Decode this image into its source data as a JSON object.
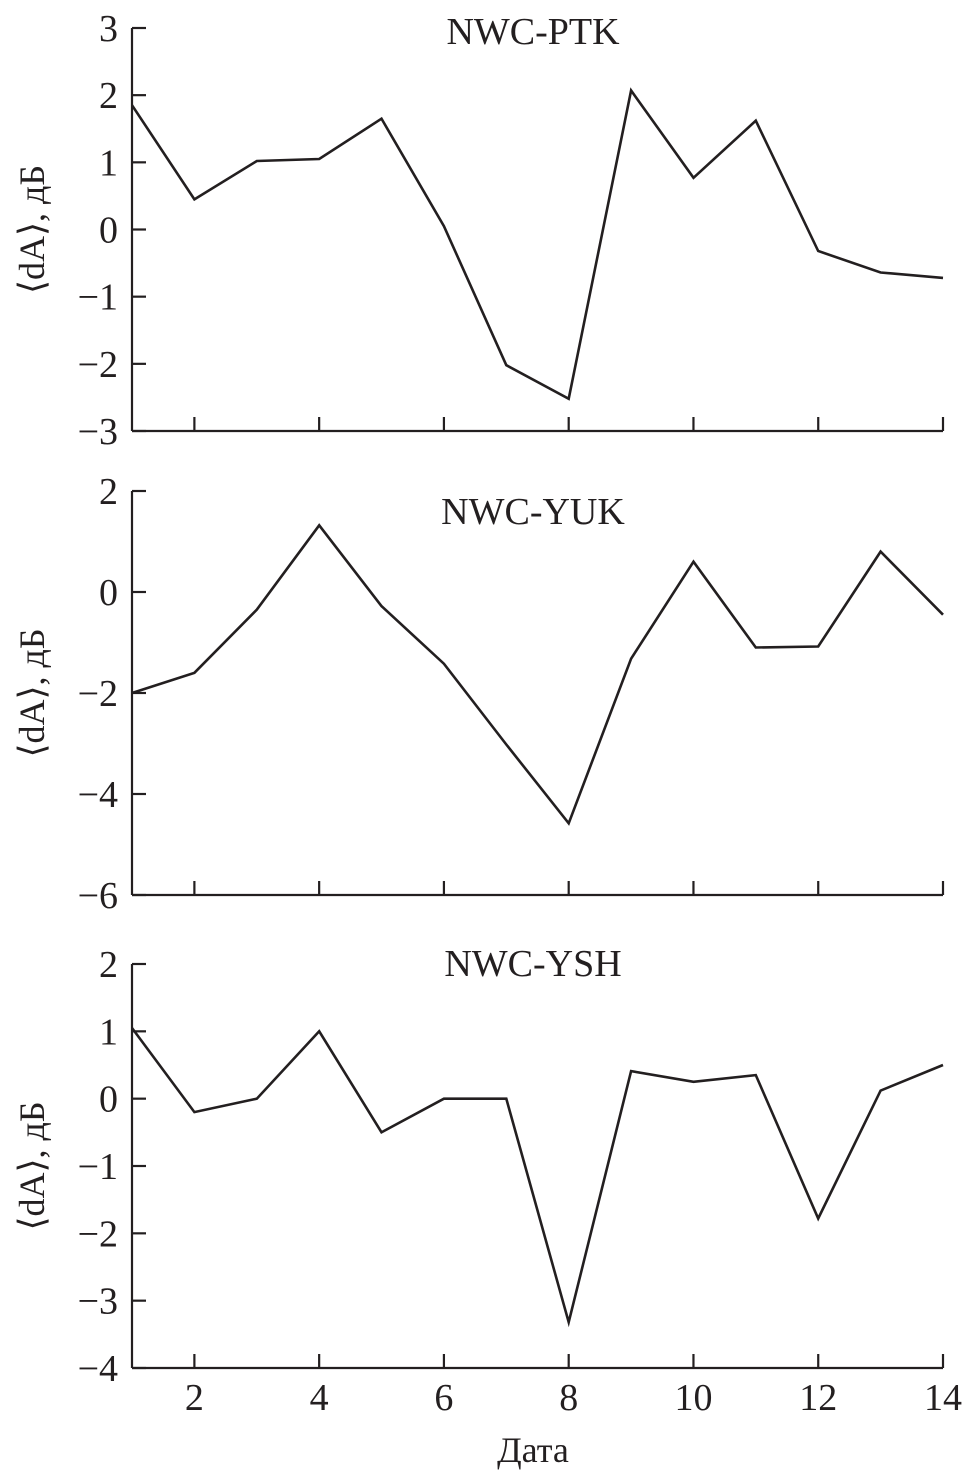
{
  "figure": {
    "xlabel": "Дата"
  },
  "chart_data": [
    {
      "type": "line",
      "title": "NWC-PTK",
      "ylabel": "⟨dA⟩, дБ",
      "xlim": [
        1,
        14
      ],
      "ylim": [
        -3,
        3
      ],
      "yticks": [
        3,
        2,
        1,
        0,
        -1,
        -2,
        -3
      ],
      "ytick_labels": [
        "3",
        "2",
        "1",
        "0",
        "−1",
        "−2",
        "−3"
      ],
      "xticks": [
        2,
        4,
        6,
        8,
        10,
        12,
        14
      ],
      "xtick_labels": [],
      "x": [
        1,
        2,
        3,
        4,
        5,
        6,
        7,
        8,
        9,
        10,
        11,
        12,
        13,
        14
      ],
      "values": [
        1.85,
        0.45,
        1.02,
        1.05,
        1.65,
        0.05,
        -2.02,
        -2.52,
        2.07,
        0.77,
        1.62,
        -0.32,
        -0.64,
        -0.72
      ]
    },
    {
      "type": "line",
      "title": "NWC-YUK",
      "ylabel": "⟨dA⟩, дБ",
      "xlim": [
        1,
        14
      ],
      "ylim": [
        -6,
        2
      ],
      "yticks": [
        2,
        0,
        -2,
        -4,
        -6
      ],
      "ytick_labels": [
        "2",
        "0",
        "−2",
        "−4",
        "−6"
      ],
      "xticks": [
        2,
        4,
        6,
        8,
        10,
        12,
        14
      ],
      "xtick_labels": [],
      "x": [
        1,
        2,
        3,
        4,
        5,
        6,
        7,
        8,
        9,
        10,
        11,
        12,
        13,
        14
      ],
      "values": [
        -2.0,
        -1.6,
        -0.35,
        1.32,
        -0.28,
        -1.42,
        -3.02,
        -4.58,
        -1.32,
        0.6,
        -1.1,
        -1.08,
        0.8,
        -0.45
      ]
    },
    {
      "type": "line",
      "title": "NWC-YSH",
      "ylabel": "⟨dA⟩, дБ",
      "xlim": [
        1,
        14
      ],
      "ylim": [
        -4,
        2
      ],
      "yticks": [
        2,
        1,
        0,
        -1,
        -2,
        -3,
        -4
      ],
      "ytick_labels": [
        "2",
        "1",
        "0",
        "−1",
        "−2",
        "−3",
        "−4"
      ],
      "xticks": [
        2,
        4,
        6,
        8,
        10,
        12,
        14
      ],
      "xtick_labels": [
        "2",
        "4",
        "6",
        "8",
        "10",
        "12",
        "14"
      ],
      "x": [
        1,
        2,
        3,
        4,
        5,
        6,
        7,
        8,
        9,
        10,
        11,
        12,
        13,
        14
      ],
      "values": [
        1.05,
        -0.2,
        0.0,
        1.0,
        -0.5,
        0.0,
        0.0,
        -3.32,
        0.41,
        0.25,
        0.35,
        -1.78,
        0.12,
        0.5
      ]
    }
  ]
}
